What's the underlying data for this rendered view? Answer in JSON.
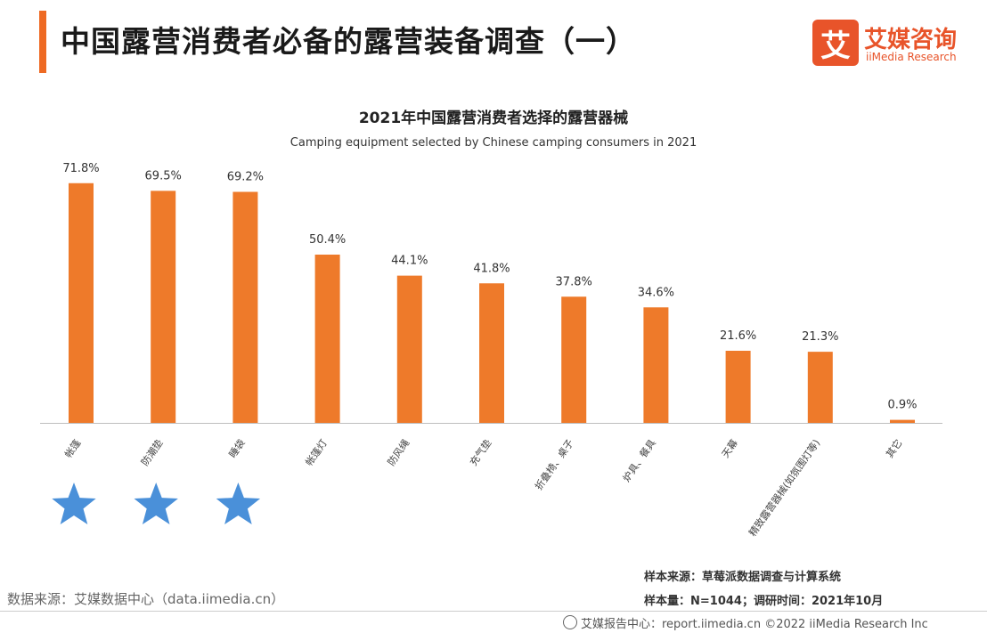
{
  "header": {
    "title": "中国露营消费者必备的露营装备调查（一）",
    "logo_mark": "艾",
    "logo_cn": "艾媒咨询",
    "logo_en": "iiMedia Research"
  },
  "colors": {
    "accent": "#ee6a23",
    "bar": "#ee7a2a",
    "star": "#4a90d9"
  },
  "chart_data": {
    "type": "bar",
    "title": "2021年中国露营消费者选择的露营器械",
    "subtitle": "Camping equipment selected by Chinese camping consumers in 2021",
    "categories": [
      "帐篷",
      "防潮垫",
      "睡袋",
      "帐篷灯",
      "防风绳",
      "充气垫",
      "折叠椅、桌子",
      "炉具、餐具",
      "天幕",
      "精致露营器械(如氛围灯等)",
      "其它"
    ],
    "values": [
      71.8,
      69.5,
      69.2,
      50.4,
      44.1,
      41.8,
      37.8,
      34.6,
      21.6,
      21.3,
      0.9
    ],
    "value_labels": [
      "71.8%",
      "69.5%",
      "69.2%",
      "50.4%",
      "44.1%",
      "41.8%",
      "37.8%",
      "34.6%",
      "21.6%",
      "21.3%",
      "0.9%"
    ],
    "ylim": [
      0,
      80
    ],
    "grid": false,
    "highlighted_categories": [
      "帐篷",
      "防潮垫",
      "睡袋"
    ],
    "highlight_icon": "star-icon"
  },
  "notes": {
    "sample_source": "样本来源：草莓派数据调查与计算系统",
    "sample_size": "样本量：N=1044；调研时间：2021年10月"
  },
  "source": "数据来源：艾媒数据中心（data.iimedia.cn）",
  "footer": "艾媒报告中心：report.iimedia.cn  ©2022  iiMedia Research  Inc"
}
